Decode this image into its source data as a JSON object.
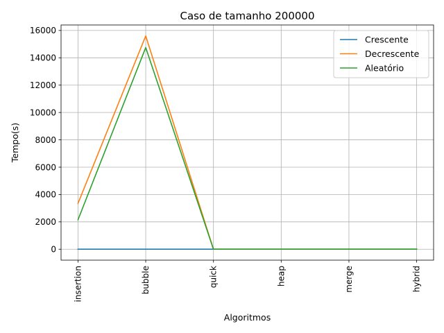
{
  "chart_data": {
    "type": "line",
    "title": "Caso de tamanho 200000",
    "xlabel": "Algoritmos",
    "ylabel": "Tempo(s)",
    "categories": [
      "insertion",
      "bubble",
      "quick",
      "heap",
      "merge",
      "hybrid"
    ],
    "ylim": [
      -800,
      16400
    ],
    "yticks": [
      0,
      2000,
      4000,
      6000,
      8000,
      10000,
      12000,
      14000,
      16000
    ],
    "grid": true,
    "legend_position": "top-right",
    "series": [
      {
        "name": "Crescente",
        "color": "#1f77b4",
        "values": [
          0.05,
          0.1,
          0.2,
          0.3,
          0.4,
          0.2
        ]
      },
      {
        "name": "Decrescente",
        "color": "#ff7f0e",
        "values": [
          3350,
          15600,
          0.3,
          0.3,
          0.4,
          0.2
        ]
      },
      {
        "name": "Aleatório",
        "color": "#2ca02c",
        "values": [
          2150,
          14750,
          0.4,
          0.5,
          0.5,
          0.3
        ]
      }
    ]
  }
}
